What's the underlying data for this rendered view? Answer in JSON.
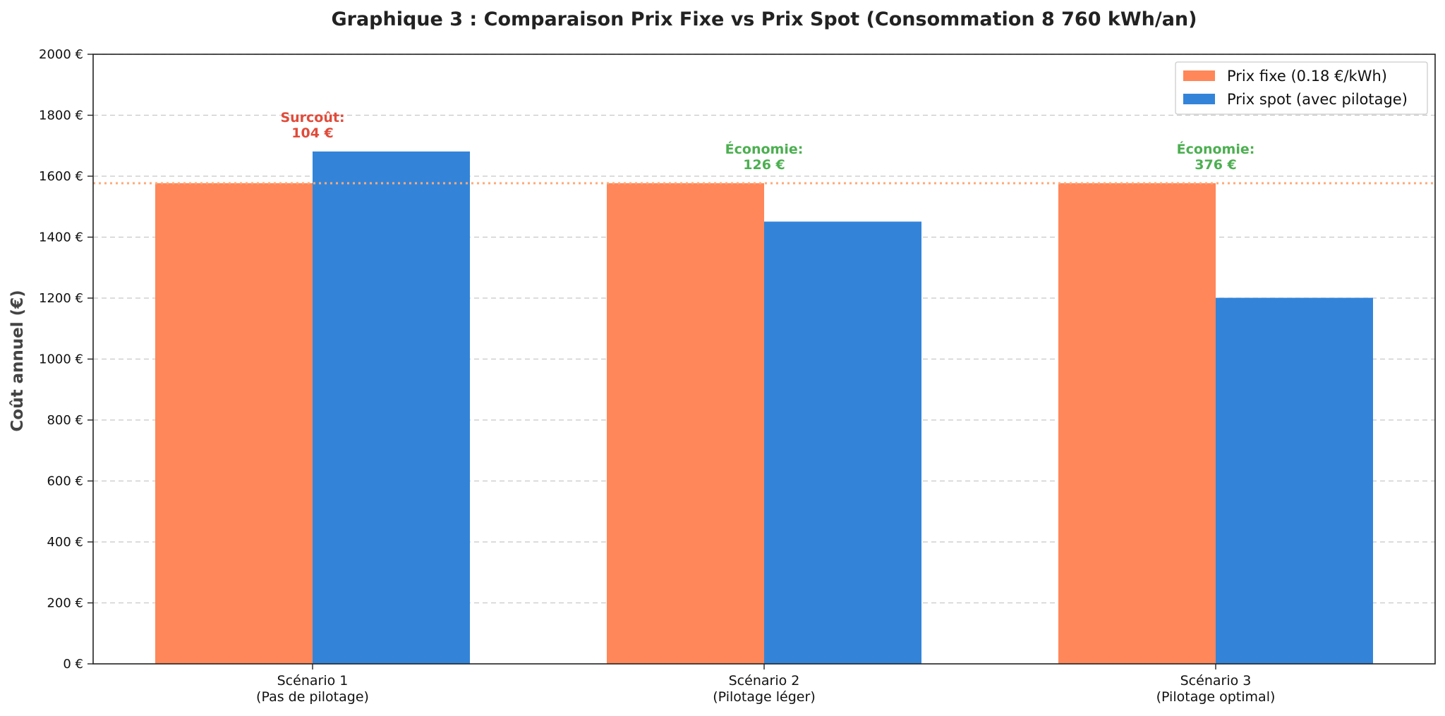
{
  "chart_data": {
    "type": "bar",
    "title": "Graphique 3 : Comparaison Prix Fixe vs Prix Spot (Consommation 8 760 kWh/an)",
    "ylabel": "Coût annuel (€)",
    "xlabel": "",
    "ylim": [
      0,
      2000
    ],
    "yticks": [
      0,
      200,
      400,
      600,
      800,
      1000,
      1200,
      1400,
      1600,
      1800,
      2000
    ],
    "ytick_suffix": " €",
    "grid": "horizontal-dashed",
    "legend_position": "top-right",
    "categories": [
      [
        "Scénario 1",
        "(Pas de pilotage)"
      ],
      [
        "Scénario 2",
        "(Pilotage léger)"
      ],
      [
        "Scénario 3",
        "(Pilotage optimal)"
      ]
    ],
    "series": [
      {
        "name": "Prix fixe (0.18 €/kWh)",
        "color": "#FF8759",
        "values": [
          1577,
          1577,
          1577
        ]
      },
      {
        "name": "Prix spot (avec pilotage)",
        "color": "#3384D9",
        "values": [
          1681,
          1451,
          1201
        ]
      }
    ],
    "reference_line": {
      "value": 1577,
      "color": "#FFAA78",
      "style": "dotted"
    },
    "annotations": [
      {
        "category_index": 0,
        "lines": [
          "Surcoût:",
          "104 €"
        ],
        "color": "#E04B3A"
      },
      {
        "category_index": 1,
        "lines": [
          "Économie:",
          "126 €"
        ],
        "color": "#4CAF50"
      },
      {
        "category_index": 2,
        "lines": [
          "Économie:",
          "376 €"
        ],
        "color": "#4CAF50"
      }
    ]
  }
}
